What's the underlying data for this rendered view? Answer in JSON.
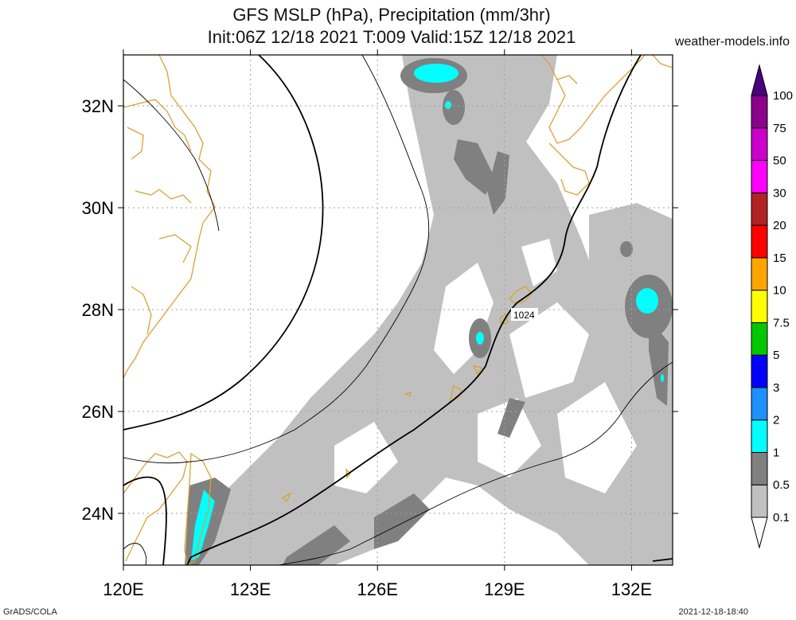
{
  "header": {
    "title_line1": "GFS MSLP (hPa), Precipitation (mm/3hr)",
    "title_line2": "Init:06Z 12/18 2021 T:009 Valid:15Z 12/18 2021",
    "credit": "weather-models.info"
  },
  "map": {
    "lat_labels": [
      "32N",
      "30N",
      "28N",
      "26N",
      "24N"
    ],
    "lon_labels": [
      "120E",
      "123E",
      "126E",
      "129E",
      "132E"
    ],
    "lat_values": [
      32,
      30,
      28,
      26,
      24
    ],
    "lon_values": [
      120,
      123,
      126,
      129,
      132
    ],
    "isobar_label": "1024",
    "colors": {
      "coast": "#d9a236",
      "precip_light": "#c0c0c0",
      "precip_medium": "#808080",
      "precip_heavy": "#00ffff",
      "isobar": "#000000",
      "grid": "#a0a0a0"
    }
  },
  "legend": {
    "levels": [
      "0.1",
      "0.5",
      "1",
      "2",
      "3",
      "5",
      "7.5",
      "10",
      "15",
      "20",
      "30",
      "50",
      "75",
      "100"
    ],
    "colors": [
      "#c0c0c0",
      "#808080",
      "#00ffff",
      "#1e90ff",
      "#0000ff",
      "#00c800",
      "#ffff00",
      "#ffa500",
      "#ff0000",
      "#b22222",
      "#ff00ff",
      "#cc00cc",
      "#8b008b",
      "#4b0082"
    ],
    "bottom_color": "#ffffff"
  },
  "footer": {
    "left": "GrADS/COLA",
    "right": "2021-12-18-18:40"
  }
}
